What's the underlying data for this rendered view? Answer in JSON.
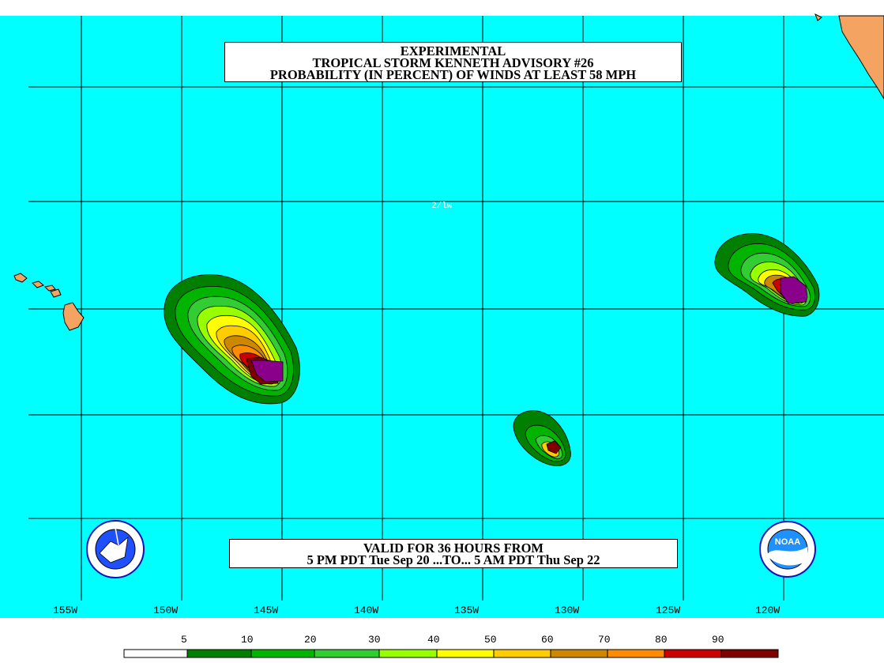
{
  "title": {
    "line1": "EXPERIMENTAL",
    "line2": "TROPICAL STORM KENNETH ADVISORY #26",
    "line3": "PROBABILITY (IN PERCENT) OF WINDS AT LEAST 58 MPH"
  },
  "valid": {
    "line1": "VALID FOR 36 HOURS FROM",
    "line2": "5 PM PDT Tue Sep 20 ...TO... 5 AM PDT Thu Sep 22"
  },
  "marker_label": "2/lw",
  "longitude_ticks": [
    "155W",
    "150W",
    "145W",
    "140W",
    "135W",
    "130W",
    "125W",
    "120W"
  ],
  "legend": {
    "labels": [
      "5",
      "10",
      "20",
      "30",
      "40",
      "50",
      "60",
      "70",
      "80",
      "90"
    ],
    "colors": [
      "#ffffff",
      "#007f00",
      "#00b400",
      "#32cd32",
      "#98ff00",
      "#ffff00",
      "#ffcc00",
      "#cc8800",
      "#ff8c00",
      "#cc0000",
      "#800000",
      "#8b008b"
    ]
  },
  "colors": {
    "ocean": "#00ffff",
    "land": "#f4a460",
    "grid": "#000000"
  },
  "logos": {
    "left": "nws-logo-icon",
    "right": "noaa-logo-icon",
    "right_text": "NOAA"
  }
}
